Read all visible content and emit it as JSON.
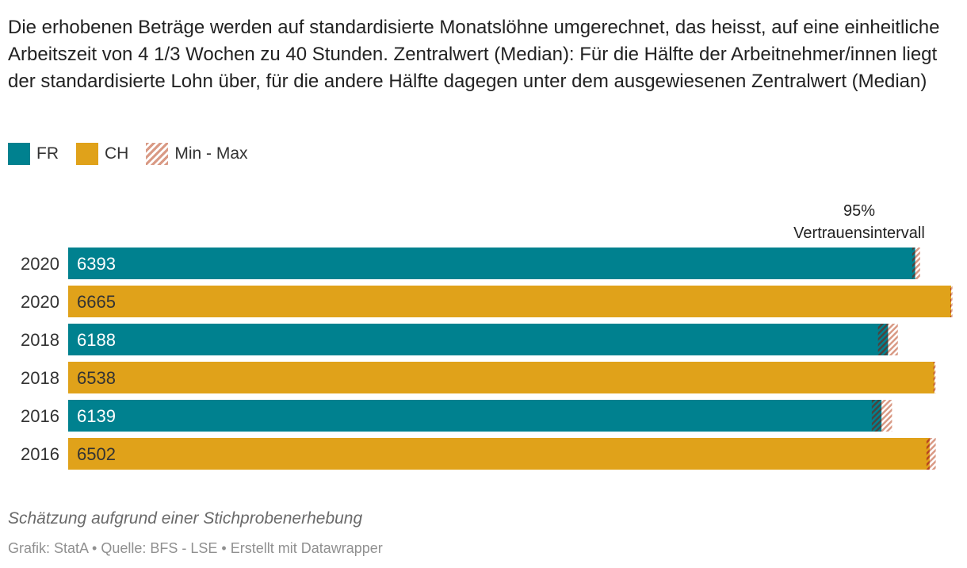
{
  "description": "Die erhobenen Beträge werden auf standardisierte Monatslöhne umgerechnet, das heisst, auf eine einheitliche Arbeitszeit von 4 1/3 Wochen zu 40 Stunden. Zentralwert (Median): Für die Hälfte der Arbeitnehmer/innen liegt der standardisierte Lohn über, für die andere Hälfte dagegen unter dem ausgewiesenen Zentralwert (Median)",
  "legend": [
    {
      "label": "FR",
      "color": "#00818f",
      "kind": "solid"
    },
    {
      "label": "CH",
      "color": "#e0a21a",
      "kind": "solid"
    },
    {
      "label": "Min - Max",
      "color": "#d99a85",
      "kind": "hatched"
    }
  ],
  "chart_data": {
    "type": "bar",
    "orientation": "horizontal",
    "annotation": {
      "line1": "95%",
      "line2": "Vertrauensintervall"
    },
    "xlim": [
      0,
      6700
    ],
    "rows": [
      {
        "year": "2020",
        "series": "FR",
        "value": 6393,
        "ci_min": 6370,
        "ci_max": 6430
      },
      {
        "year": "2020",
        "series": "CH",
        "value": 6665,
        "ci_min": 6658,
        "ci_max": 6672
      },
      {
        "year": "2018",
        "series": "FR",
        "value": 6188,
        "ci_min": 6112,
        "ci_max": 6262
      },
      {
        "year": "2018",
        "series": "CH",
        "value": 6538,
        "ci_min": 6531,
        "ci_max": 6545
      },
      {
        "year": "2016",
        "series": "FR",
        "value": 6139,
        "ci_min": 6065,
        "ci_max": 6218
      },
      {
        "year": "2016",
        "series": "CH",
        "value": 6502,
        "ci_min": 6478,
        "ci_max": 6548
      }
    ],
    "colors": {
      "FR": "#00818f",
      "CH": "#e0a21a",
      "hatch": "#d99a85"
    }
  },
  "footer": {
    "note": "Schätzung aufgrund einer Stichprobenerhebung",
    "credit": "Grafik: StatA",
    "source": "Quelle: BFS - LSE",
    "made_with": "Erstellt mit Datawrapper",
    "separator": " • "
  }
}
